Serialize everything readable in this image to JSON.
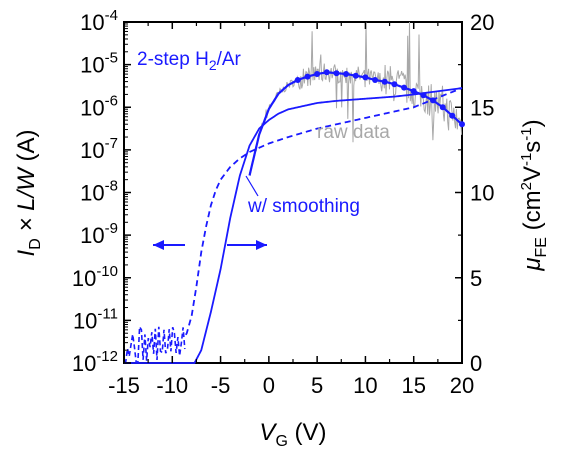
{
  "chart_data": {
    "type": "line",
    "title": "",
    "xlabel": {
      "main": "V",
      "sub": "G",
      "unit": "(V)"
    },
    "ylabel_left": {
      "pre": "I",
      "sub": "D",
      "rest": "× L/W",
      "unit": "(A)"
    },
    "ylabel_right": {
      "main": "μ",
      "sub": "FE",
      "unit_parts": [
        "(cm",
        "2",
        "V",
        "-1",
        "s",
        "-1",
        ")"
      ]
    },
    "xlim": [
      -15,
      20
    ],
    "x_ticks": [
      -15,
      -10,
      -5,
      0,
      5,
      10,
      15,
      20
    ],
    "x_tick_labels": [
      "-15",
      "-10",
      "-5",
      "0",
      "5",
      "10",
      "15",
      "20"
    ],
    "ylim_left_log10": [
      -12,
      -4
    ],
    "y_left_scale": "log",
    "y_left_ticks": [
      -12,
      -11,
      -10,
      -9,
      -8,
      -7,
      -6,
      -5,
      -4
    ],
    "y_left_tick_labels": [
      "-12",
      "-11",
      "-10",
      "-9",
      "-8",
      "-7",
      "-6",
      "-5",
      "-4"
    ],
    "y_left_tick_base": "10",
    "ylim_right": [
      0,
      20
    ],
    "y_right_ticks": [
      0,
      5,
      10,
      15,
      20
    ],
    "y_right_tick_labels": [
      "0",
      "5",
      "10",
      "15",
      "20"
    ],
    "grid": false,
    "colors": {
      "blue": "#1a1aff",
      "gray": "#a8a8a8"
    },
    "annotations": {
      "legend_pre": "2-step H",
      "legend_sub": "2",
      "legend_post": "/Ar",
      "raw_data": "raw data",
      "smoothing": "w/ smoothing"
    },
    "series": [
      {
        "axis": "left",
        "style": "solid",
        "x": [
          -15,
          -9,
          -7.7,
          -7,
          -6,
          -5,
          -4.5,
          -4,
          -3,
          -2,
          -1,
          0,
          1,
          2,
          3,
          4,
          5,
          7,
          10,
          13,
          15,
          20
        ],
        "log10_y": [
          -12,
          -12,
          -12,
          -11.7,
          -10.8,
          -9.8,
          -9.2,
          -8.6,
          -7.6,
          -6.9,
          -6.5,
          -6.3,
          -6.15,
          -6.05,
          -6.0,
          -5.95,
          -5.9,
          -5.85,
          -5.8,
          -5.75,
          -5.7,
          -5.55
        ]
      },
      {
        "axis": "left",
        "style": "dashed",
        "x": [
          -15,
          -9,
          -8.5,
          -8,
          -7.5,
          -7,
          -6.5,
          -6,
          -5.5,
          -5,
          -4,
          -3,
          -2,
          -1,
          0,
          2,
          5,
          10,
          15,
          20
        ],
        "log10_y": [
          -11.6,
          -11.5,
          -11.3,
          -10.9,
          -10.2,
          -9.4,
          -8.8,
          -8.3,
          -7.95,
          -7.7,
          -7.4,
          -7.2,
          -7.05,
          -6.95,
          -6.85,
          -6.7,
          -6.5,
          -6.25,
          -6.0,
          -5.55
        ]
      },
      {
        "axis": "right",
        "style": "solid-markers",
        "x": [
          -2,
          -1,
          0,
          1,
          2,
          3,
          4,
          5,
          6,
          7,
          8,
          9,
          10,
          11,
          12,
          13,
          14,
          15,
          16,
          17,
          18,
          19,
          20
        ],
        "y": [
          11,
          13.4,
          14.9,
          15.8,
          16.3,
          16.6,
          16.8,
          16.95,
          17.05,
          17.0,
          16.95,
          16.85,
          16.75,
          16.6,
          16.5,
          16.35,
          16.15,
          15.95,
          15.7,
          15.4,
          15.0,
          14.5,
          14.0
        ]
      },
      {
        "axis": "right",
        "style": "noisy-gray",
        "x": [
          -2,
          20
        ],
        "y_center_follows": "right solid-markers series"
      }
    ]
  }
}
